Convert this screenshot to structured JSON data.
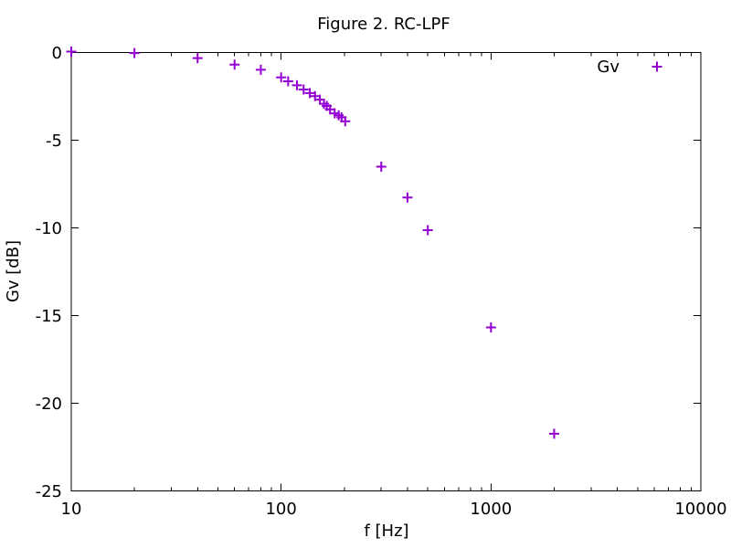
{
  "chart_data": {
    "type": "scatter",
    "title": "Figure 2. RC-LPF",
    "xlabel": "f [Hz]",
    "ylabel": "Gv [dB]",
    "x_scale": "log",
    "xlim": [
      10,
      10000
    ],
    "ylim": [
      -25,
      0
    ],
    "grid": false,
    "legend_position": "top-right-inside",
    "x_ticks": [
      {
        "value": 10,
        "label": "10"
      },
      {
        "value": 100,
        "label": "100"
      },
      {
        "value": 1000,
        "label": "1000"
      },
      {
        "value": 10000,
        "label": "10000"
      }
    ],
    "y_ticks": [
      {
        "value": 0,
        "label": "0"
      },
      {
        "value": -5,
        "label": "-5"
      },
      {
        "value": -10,
        "label": "-10"
      },
      {
        "value": -15,
        "label": "-15"
      },
      {
        "value": -20,
        "label": "-20"
      },
      {
        "value": -25,
        "label": "-25"
      }
    ],
    "series": [
      {
        "name": "Gv",
        "marker": "plus",
        "color": "#9400d3",
        "points": [
          [
            10,
            0.05
          ],
          [
            20,
            -0.03
          ],
          [
            40,
            -0.32
          ],
          [
            60,
            -0.69
          ],
          [
            80,
            -0.98
          ],
          [
            100,
            -1.42
          ],
          [
            108,
            -1.64
          ],
          [
            119,
            -1.87
          ],
          [
            128,
            -2.11
          ],
          [
            137,
            -2.31
          ],
          [
            145,
            -2.49
          ],
          [
            153,
            -2.69
          ],
          [
            160,
            -2.92
          ],
          [
            165,
            -3.05
          ],
          [
            171,
            -3.24
          ],
          [
            180,
            -3.47
          ],
          [
            188,
            -3.58
          ],
          [
            194,
            -3.7
          ],
          [
            202,
            -3.92
          ],
          [
            300,
            -6.51
          ],
          [
            400,
            -8.27
          ],
          [
            500,
            -10.13
          ],
          [
            1000,
            -15.68
          ],
          [
            2000,
            -21.74
          ]
        ]
      }
    ]
  },
  "colors": {
    "background": "#ffffff",
    "axis": "#000000",
    "text": "#000000",
    "series1": "#9400d3"
  }
}
